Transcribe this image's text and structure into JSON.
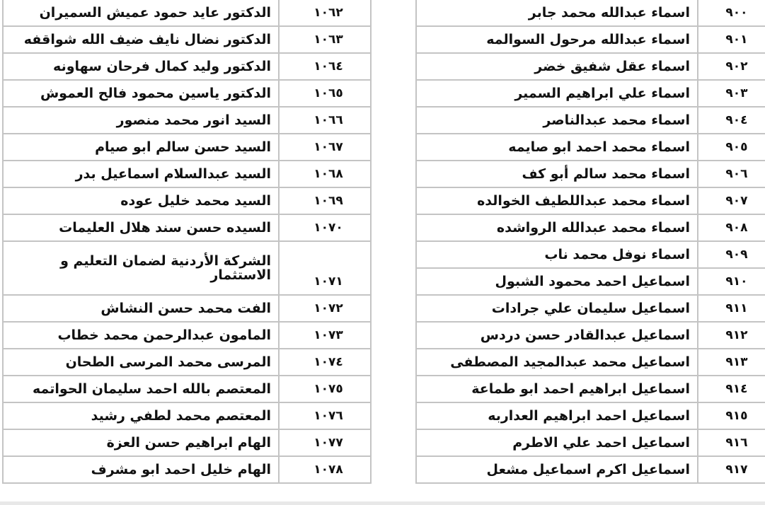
{
  "left_table": [
    {
      "number": "١٠٦٢",
      "name": "الدكتور عايد حمود عميش السميران"
    },
    {
      "number": "١٠٦٣",
      "name": "الدكتور نضال نايف ضيف الله شواقفه"
    },
    {
      "number": "١٠٦٤",
      "name": "الدكتور وليد كمال فرحان سهاونه"
    },
    {
      "number": "١٠٦٥",
      "name": "الدكتور ياسين محمود فالح العموش"
    },
    {
      "number": "١٠٦٦",
      "name": "السيد انور محمد منصور"
    },
    {
      "number": "١٠٦٧",
      "name": "السيد حسن سالم ابو صيام"
    },
    {
      "number": "١٠٦٨",
      "name": "السيد عبدالسلام اسماعيل بدر"
    },
    {
      "number": "١٠٦٩",
      "name": "السيد محمد خليل عوده"
    },
    {
      "number": "١٠٧٠",
      "name": "السيده حسن سند هلال العليمات"
    },
    {
      "number": "١٠٧١",
      "name": "الشركة الأردنية لضمان التعليم و الاستثمار"
    },
    {
      "number": "١٠٧٢",
      "name": "الفت محمد حسن النشاش"
    },
    {
      "number": "١٠٧٣",
      "name": "المامون عبدالرحمن محمد خطاب"
    },
    {
      "number": "١٠٧٤",
      "name": "المرسى محمد المرسى الطحان"
    },
    {
      "number": "١٠٧٥",
      "name": "المعتصم بالله احمد سليمان الحواتمه"
    },
    {
      "number": "١٠٧٦",
      "name": "المعتصم محمد لطفي رشيد"
    },
    {
      "number": "١٠٧٧",
      "name": "الهام ابراهيم حسن العزة"
    },
    {
      "number": "١٠٧٨",
      "name": "الهام خليل احمد ابو مشرف"
    }
  ],
  "right_table": [
    {
      "number": "٩٠٠",
      "name": "اسماء عبدالله محمد جابر"
    },
    {
      "number": "٩٠١",
      "name": "اسماء عبدالله مرحول السوالمه"
    },
    {
      "number": "٩٠٢",
      "name": "اسماء عقل شفيق خضر"
    },
    {
      "number": "٩٠٣",
      "name": "اسماء علي ابراهيم السمير"
    },
    {
      "number": "٩٠٤",
      "name": "اسماء محمد  عبدالناصر"
    },
    {
      "number": "٩٠٥",
      "name": "اسماء محمد احمد ابو صايمه"
    },
    {
      "number": "٩٠٦",
      "name": "اسماء محمد سالم أبو كف"
    },
    {
      "number": "٩٠٧",
      "name": "اسماء محمد عبداللطيف الخوالده"
    },
    {
      "number": "٩٠٨",
      "name": "اسماء محمد عبدالله الرواشده"
    },
    {
      "number": "٩٠٩",
      "name": "اسماء نوفل محمد ناب"
    },
    {
      "number": "٩١٠",
      "name": "اسماعيل احمد محمود الشبول"
    },
    {
      "number": "٩١١",
      "name": "اسماعيل سليمان علي جرادات"
    },
    {
      "number": "٩١٢",
      "name": "اسماعيل عبدالقادر حسن دردس"
    },
    {
      "number": "٩١٣",
      "name": "اسماعيل محمد عبدالمجيد المصطفى"
    },
    {
      "number": "٩١٤",
      "name": "اسماعيل ابراهيم احمد ابو طماعة"
    },
    {
      "number": "٩١٥",
      "name": "اسماعيل احمد ابراهيم العداربه"
    },
    {
      "number": "٩١٦",
      "name": "اسماعيل احمد علي الاطرم"
    },
    {
      "number": "٩١٧",
      "name": "اسماعيل اكرم اسماعيل مشعل"
    }
  ]
}
